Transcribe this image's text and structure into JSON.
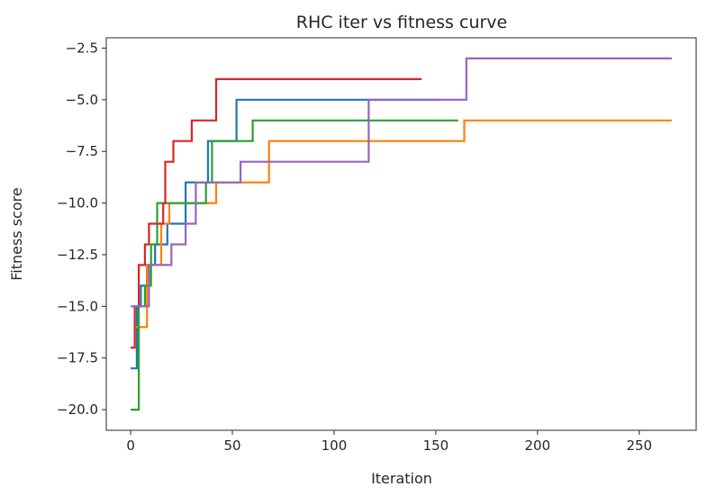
{
  "chart_data": {
    "type": "line",
    "title": "RHC iter vs fitness curve",
    "xlabel": "Iteration",
    "ylabel": "Fitness score",
    "xlim": [
      -12,
      278
    ],
    "ylim": [
      -21,
      -2
    ],
    "xticks": [
      0,
      50,
      100,
      150,
      200,
      250
    ],
    "yticks": [
      -20.0,
      -17.5,
      -15.0,
      -12.5,
      -10.0,
      -7.5,
      -5.0,
      -2.5
    ],
    "xtick_labels": [
      "0",
      "50",
      "100",
      "150",
      "200",
      "250"
    ],
    "ytick_labels": [
      "−20.0",
      "−17.5",
      "−15.0",
      "−12.5",
      "−10.0",
      "−7.5",
      "−5.0",
      "−2.5"
    ],
    "grid": false,
    "step": true,
    "series": [
      {
        "color": "#1f77b4",
        "points": [
          [
            0,
            -18
          ],
          [
            3,
            -15
          ],
          [
            5,
            -14
          ],
          [
            8,
            -13
          ],
          [
            12,
            -12
          ],
          [
            18,
            -11
          ],
          [
            27,
            -9
          ],
          [
            38,
            -7
          ],
          [
            52,
            -5
          ],
          [
            152,
            -5
          ]
        ]
      },
      {
        "color": "#ff7f0e",
        "points": [
          [
            0,
            -17
          ],
          [
            2,
            -16
          ],
          [
            8,
            -13
          ],
          [
            15,
            -11
          ],
          [
            19,
            -10
          ],
          [
            42,
            -9
          ],
          [
            68,
            -7
          ],
          [
            164,
            -6
          ],
          [
            266,
            -6
          ]
        ]
      },
      {
        "color": "#2ca02c",
        "points": [
          [
            0,
            -20
          ],
          [
            4,
            -15
          ],
          [
            7,
            -14
          ],
          [
            10,
            -12
          ],
          [
            13,
            -10
          ],
          [
            37,
            -9
          ],
          [
            40,
            -7
          ],
          [
            60,
            -6
          ],
          [
            161,
            -6
          ]
        ]
      },
      {
        "color": "#d62728",
        "points": [
          [
            0,
            -17
          ],
          [
            2,
            -15
          ],
          [
            4,
            -13
          ],
          [
            7,
            -12
          ],
          [
            9,
            -11
          ],
          [
            16,
            -10
          ],
          [
            17,
            -8
          ],
          [
            21,
            -7
          ],
          [
            30,
            -6
          ],
          [
            42,
            -4
          ],
          [
            143,
            -4
          ]
        ]
      },
      {
        "color": "#9467bd",
        "points": [
          [
            0,
            -15
          ],
          [
            9,
            -13
          ],
          [
            20,
            -12
          ],
          [
            27,
            -11
          ],
          [
            32,
            -9
          ],
          [
            54,
            -8
          ],
          [
            117,
            -5
          ],
          [
            165,
            -3
          ],
          [
            266,
            -3
          ]
        ]
      }
    ]
  }
}
